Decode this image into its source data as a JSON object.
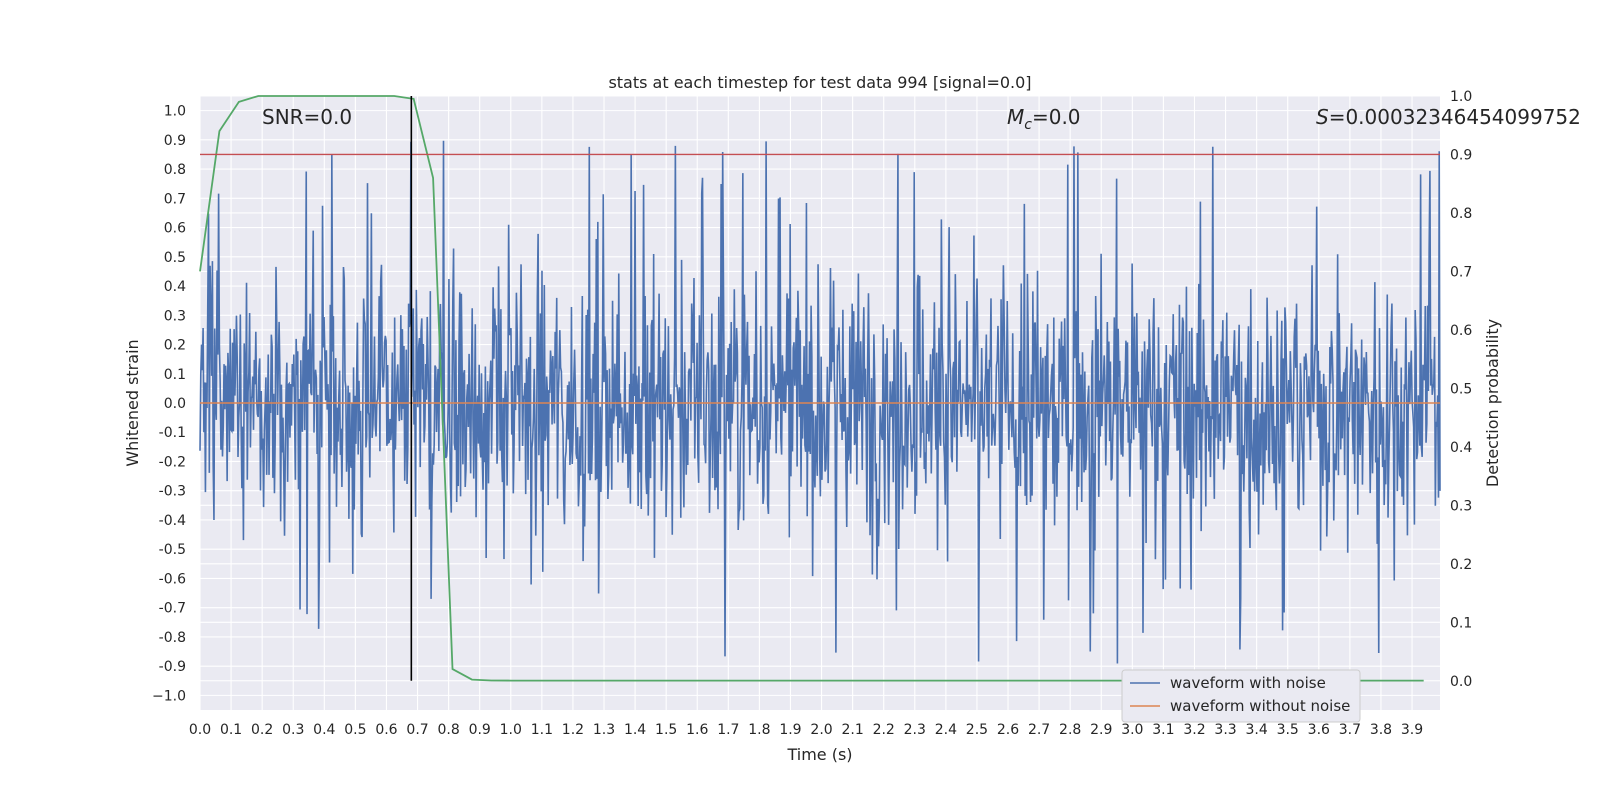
{
  "chart_data": {
    "type": "line",
    "title": "stats at each timestep for test data 994 [signal=0.0]",
    "xlabel": "Time (s)",
    "ylabel": "Whitened strain",
    "y2label": "Detection probability",
    "xlim": [
      0.0,
      3.99
    ],
    "ylim": [
      -1.05,
      1.05
    ],
    "y2lim": [
      -0.05,
      1.0
    ],
    "x_ticks": [
      "0.0",
      "0.1",
      "0.2",
      "0.3",
      "0.4",
      "0.5",
      "0.6",
      "0.7",
      "0.8",
      "0.9",
      "1.0",
      "1.1",
      "1.2",
      "1.3",
      "1.4",
      "1.5",
      "1.6",
      "1.7",
      "1.8",
      "1.9",
      "2.0",
      "2.1",
      "2.2",
      "2.3",
      "2.4",
      "2.5",
      "2.6",
      "2.7",
      "2.8",
      "2.9",
      "3.0",
      "3.1",
      "3.2",
      "3.3",
      "3.4",
      "3.5",
      "3.6",
      "3.7",
      "3.8",
      "3.9"
    ],
    "y_ticks": [
      "1.0",
      "0.9",
      "0.8",
      "0.7",
      "0.6",
      "0.5",
      "0.4",
      "0.3",
      "0.2",
      "0.1",
      "0.0",
      "-0.1",
      "-0.2",
      "-0.3",
      "-0.4",
      "-0.5",
      "-0.6",
      "-0.7",
      "-0.8",
      "-0.9",
      "−1.0"
    ],
    "y2_ticks": [
      "1.0",
      "0.9",
      "0.8",
      "0.7",
      "0.6",
      "0.5",
      "0.4",
      "0.3",
      "0.2",
      "0.1",
      "0.0"
    ],
    "annotations": {
      "snr": "SNR=0.0",
      "mc_symbol": "M",
      "mc_sub": "c",
      "mc_value": "=0.0",
      "s_symbol": "S",
      "s_value": "=0.00032346454099752"
    },
    "detection_threshold": 0.9,
    "detection_time": 0.68,
    "series": [
      {
        "name": "waveform with noise",
        "color": "#4c72b0",
        "axis": "left",
        "kind": "noise",
        "sample_count": 1600,
        "amplitude_range": [
          -0.92,
          1.0
        ]
      },
      {
        "name": "waveform without noise",
        "color": "#dd8452",
        "axis": "left",
        "x": [
          0.0,
          3.99
        ],
        "y": [
          0.0,
          0.0
        ]
      },
      {
        "name": "detection probability",
        "color": "#55a868",
        "axis": "right",
        "x": [
          0.0,
          0.0625,
          0.125,
          0.1875,
          0.25,
          0.3125,
          0.375,
          0.4375,
          0.5,
          0.5625,
          0.625,
          0.6875,
          0.75,
          0.8125,
          0.875,
          0.9375,
          1.0,
          1.25,
          1.5,
          2.0,
          2.5,
          3.0,
          3.5,
          3.9375
        ],
        "y": [
          0.7,
          0.94,
          0.99,
          1.0,
          1.0,
          1.0,
          1.0,
          1.0,
          1.0,
          1.0,
          1.0,
          0.995,
          0.86,
          0.02,
          0.002,
          0.0005,
          0.0003,
          0.0003,
          0.0003,
          0.0003,
          0.0003,
          0.0003,
          0.0003,
          0.0003
        ]
      }
    ],
    "legend": {
      "position": "lower right",
      "entries": [
        {
          "label": "waveform with noise",
          "color": "#4c72b0"
        },
        {
          "label": "waveform without noise",
          "color": "#dd8452"
        }
      ]
    },
    "threshold_color": "#c44e52",
    "detection_line_color": "#000000"
  }
}
